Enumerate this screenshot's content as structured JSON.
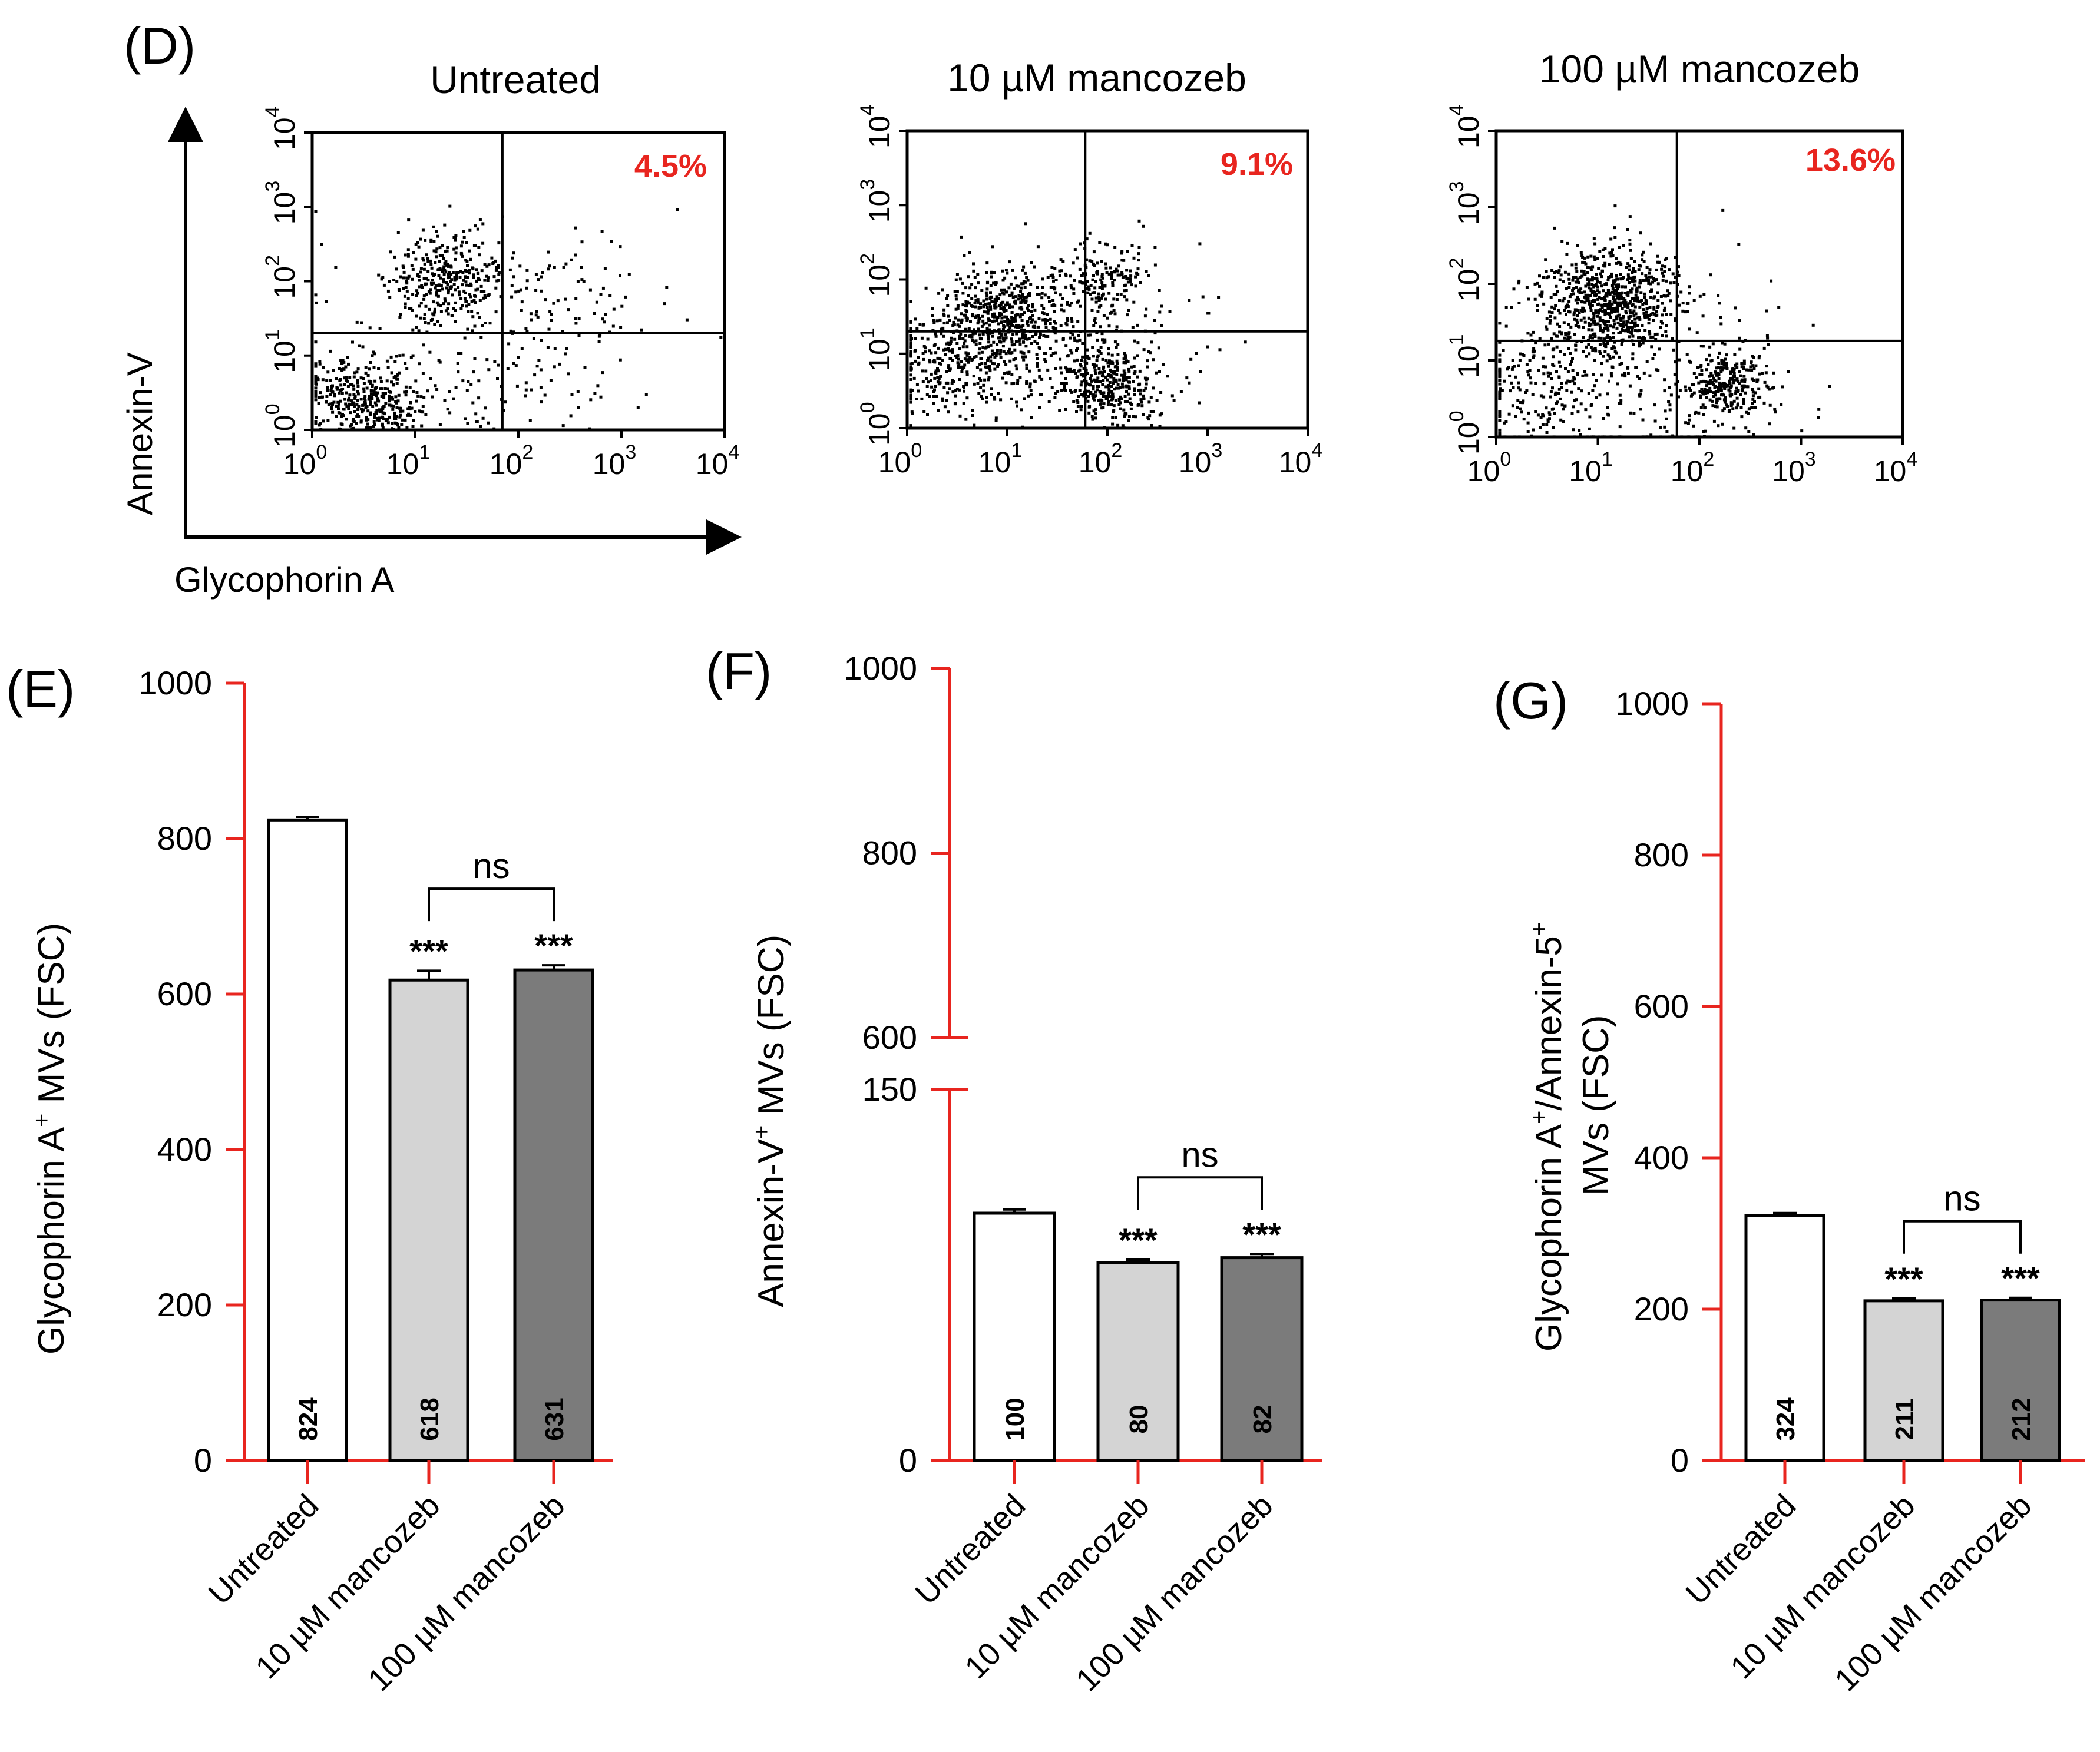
{
  "panel_d": {
    "letter": "D",
    "y_axis_label": "Annexin-V",
    "x_axis_label": "Glycophorin A",
    "tick_base": "10",
    "tick_exponents": [
      "0",
      "1",
      "2",
      "3",
      "4"
    ],
    "plots": [
      {
        "title": "Untreated",
        "percent": "4.5%"
      },
      {
        "title": "10 µM mancozeb",
        "percent": "9.1%"
      },
      {
        "title": "100 µM mancozeb",
        "percent": "13.6%"
      }
    ]
  },
  "colors": {
    "axis_red": "#e8251f",
    "percent_red": "#e8251f",
    "untreated_fill": "#ffffff",
    "low_dose_fill": "#d4d4d4",
    "high_dose_fill": "#7b7b7b"
  },
  "chart_data": [
    {
      "type": "scatter",
      "panel": "D",
      "title": "Untreated",
      "xlabel": "Glycophorin A",
      "ylabel": "Annexin-V",
      "xscale": "log",
      "yscale": "log",
      "xlim": [
        1,
        10000
      ],
      "ylim": [
        1,
        10000
      ],
      "quadrant_gate": {
        "x": 70,
        "y": 20
      },
      "upper_right_percent": 4.5,
      "clusters": [
        {
          "x": 20,
          "y": 120,
          "spread": 0.3,
          "n": 330
        },
        {
          "x": 3,
          "y": 2.5,
          "spread": 0.3,
          "n": 420
        },
        {
          "x": 40,
          "y": 8,
          "spread": 0.75,
          "n": 200
        },
        {
          "x": 300,
          "y": 60,
          "spread": 0.4,
          "n": 60
        }
      ]
    },
    {
      "type": "scatter",
      "panel": "D",
      "title": "10 µM mancozeb",
      "xlabel": "Glycophorin A",
      "ylabel": "Annexin-V",
      "xscale": "log",
      "yscale": "log",
      "xlim": [
        1,
        10000
      ],
      "ylim": [
        1,
        10000
      ],
      "quadrant_gate": {
        "x": 60,
        "y": 20
      },
      "upper_right_percent": 9.1,
      "clusters": [
        {
          "x": 8,
          "y": 30,
          "spread": 0.35,
          "n": 550
        },
        {
          "x": 2.5,
          "y": 6,
          "spread": 0.35,
          "n": 260
        },
        {
          "x": 100,
          "y": 4,
          "spread": 0.25,
          "n": 330
        },
        {
          "x": 90,
          "y": 110,
          "spread": 0.25,
          "n": 150
        },
        {
          "x": 50,
          "y": 12,
          "spread": 0.7,
          "n": 200
        }
      ]
    },
    {
      "type": "scatter",
      "panel": "D",
      "title": "100 µM mancozeb",
      "xlabel": "Glycophorin A",
      "ylabel": "Annexin-V",
      "xscale": "log",
      "yscale": "log",
      "xlim": [
        1,
        10000
      ],
      "ylim": [
        1,
        10000
      ],
      "quadrant_gate": {
        "x": 60,
        "y": 18
      },
      "upper_right_percent": 13.6,
      "clusters": [
        {
          "x": 12,
          "y": 60,
          "spread": 0.35,
          "n": 750
        },
        {
          "x": 180,
          "y": 5,
          "spread": 0.22,
          "n": 280
        },
        {
          "x": 2.5,
          "y": 5,
          "spread": 0.4,
          "n": 160
        },
        {
          "x": 30,
          "y": 6,
          "spread": 0.7,
          "n": 250
        }
      ]
    },
    {
      "type": "bar",
      "panel": "E",
      "categories": [
        "Untreated",
        "10 µM mancozeb",
        "100 µM mancozeb"
      ],
      "values": [
        824,
        618,
        631
      ],
      "value_labels": [
        "824",
        "618",
        "631"
      ],
      "errors": [
        4,
        12,
        6
      ],
      "ylabel_main": "Glycophorin A",
      "ylabel_sup": "+",
      "ylabel_tail": " MVs (FSC)",
      "ylim": [
        0,
        1000
      ],
      "yticks": [
        "0",
        "200",
        "400",
        "600",
        "800",
        "1000"
      ],
      "significance": [
        "",
        "***",
        "***"
      ],
      "comparison": {
        "between": [
          1,
          2
        ],
        "label": "ns"
      }
    },
    {
      "type": "bar",
      "panel": "F",
      "categories": [
        "Untreated",
        "10 µM mancozeb",
        "100 µM mancozeb"
      ],
      "values": [
        100,
        80,
        82
      ],
      "value_labels": [
        "100",
        "80",
        "82"
      ],
      "errors": [
        1.5,
        1.2,
        1.5
      ],
      "ylabel_main": "Annexin-V",
      "ylabel_sup": "+",
      "ylabel_tail": " MVs (FSC)",
      "axis_break": {
        "lower_range": [
          0,
          150
        ],
        "upper_range": [
          600,
          1000
        ]
      },
      "yticks": [
        "0",
        "150",
        "600",
        "800",
        "1000"
      ],
      "significance": [
        "",
        "***",
        "***"
      ],
      "comparison": {
        "between": [
          1,
          2
        ],
        "label": "ns"
      }
    },
    {
      "type": "bar",
      "panel": "G",
      "categories": [
        "Untreated",
        "10 µM mancozeb",
        "100 µM mancozeb"
      ],
      "values": [
        324,
        211,
        212
      ],
      "value_labels": [
        "324",
        "211",
        "212"
      ],
      "errors": [
        3,
        3,
        3
      ],
      "ylabel_line1_a": "Glycophorin A",
      "ylabel_line1_sup1": "+",
      "ylabel_line1_b": "/Annexin-5",
      "ylabel_line1_sup2": "+",
      "ylabel_line2": "MVs (FSC)",
      "ylim": [
        0,
        1000
      ],
      "yticks": [
        "0",
        "200",
        "400",
        "600",
        "800",
        "1000"
      ],
      "significance": [
        "",
        "***",
        "***"
      ],
      "comparison": {
        "between": [
          1,
          2
        ],
        "label": "ns"
      }
    }
  ]
}
